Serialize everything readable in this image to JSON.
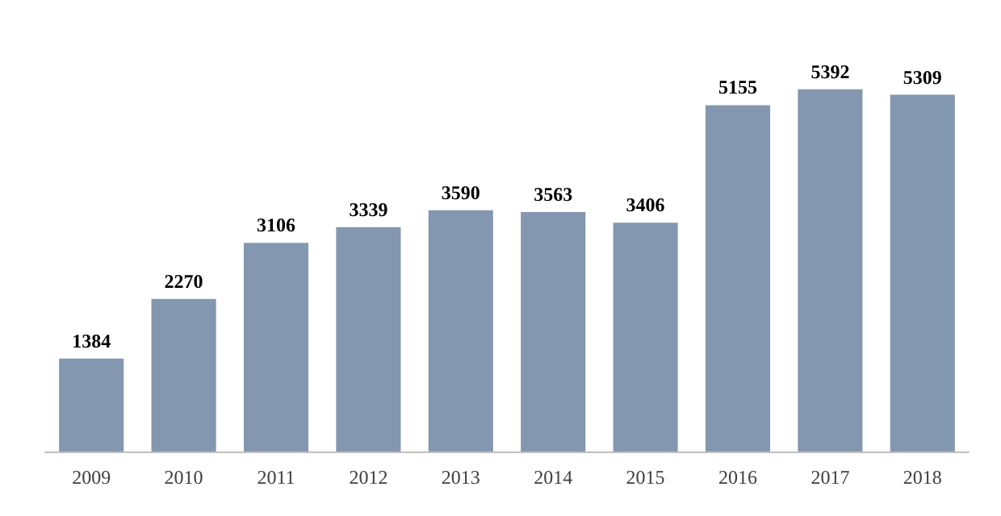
{
  "chart_data": {
    "type": "bar",
    "categories": [
      "2009",
      "2010",
      "2011",
      "2012",
      "2013",
      "2014",
      "2015",
      "2016",
      "2017",
      "2018"
    ],
    "values": [
      1384,
      2270,
      3106,
      3339,
      3590,
      3563,
      3406,
      5155,
      5392,
      5309
    ],
    "color": "#8497b0",
    "data_labels": true
  }
}
